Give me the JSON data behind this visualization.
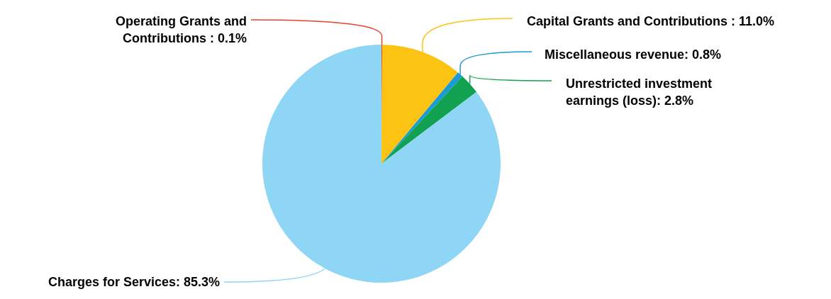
{
  "chart_data": {
    "type": "pie",
    "categories": [
      "Operating Grants and Contributions",
      "Capital Grants and Contributions",
      "Miscellaneous revenue",
      "Unrestricted investment earnings (loss)",
      "Charges for Services"
    ],
    "values": [
      0.1,
      11.0,
      0.8,
      2.8,
      85.3
    ],
    "colors": [
      "#e8432b",
      "#fdc312",
      "#1a9ad6",
      "#12a150",
      "#8fd5f5"
    ],
    "value_labels": [
      "0.1%",
      "11.0%",
      "0.8%",
      "2.8%",
      "85.3%"
    ]
  }
}
